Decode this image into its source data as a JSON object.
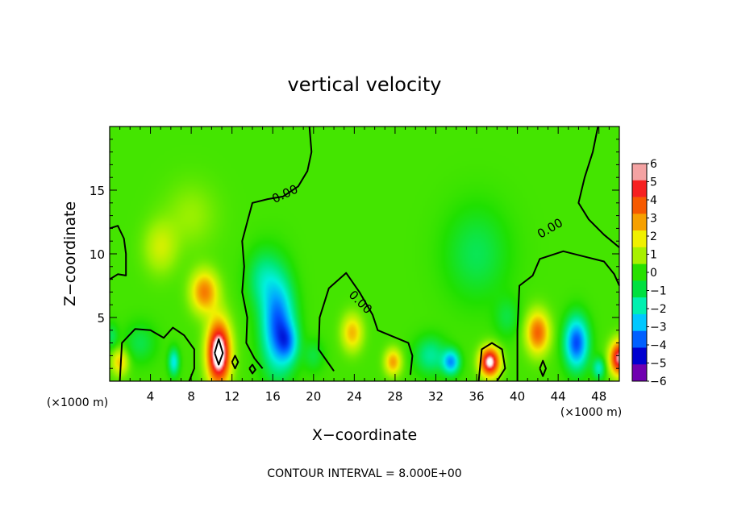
{
  "chart_data": {
    "type": "heatmap",
    "title": "vertical velocity",
    "xlabel": "X−coordinate",
    "ylabel": "Z−coordinate",
    "x_unit_label": "(×1000 m)",
    "x_unit_label_right": "(×1000 m)",
    "footer": "CONTOUR INTERVAL = 8.000E+00",
    "xlim": [
      0,
      50
    ],
    "ylim": [
      0,
      20
    ],
    "x_ticks": [
      {
        "value": 4,
        "label": "4"
      },
      {
        "value": 8,
        "label": "8"
      },
      {
        "value": 12,
        "label": "12"
      },
      {
        "value": 16,
        "label": "16"
      },
      {
        "value": 20,
        "label": "20"
      },
      {
        "value": 24,
        "label": "24"
      },
      {
        "value": 28,
        "label": "28"
      },
      {
        "value": 32,
        "label": "32"
      },
      {
        "value": 36,
        "label": "36"
      },
      {
        "value": 40,
        "label": "40"
      },
      {
        "value": 44,
        "label": "44"
      },
      {
        "value": 48,
        "label": "48"
      }
    ],
    "y_ticks": [
      {
        "value": 5,
        "label": "5"
      },
      {
        "value": 10,
        "label": "10"
      },
      {
        "value": 15,
        "label": "15"
      }
    ],
    "colorbar": {
      "range": [
        -6,
        6
      ],
      "labels": [
        "6",
        "5",
        "4",
        "3",
        "2",
        "1",
        "0",
        "−1",
        "−2",
        "−3",
        "−4",
        "−5",
        "−6"
      ],
      "colors": [
        "#f4a3a3",
        "#f62020",
        "#f65a00",
        "#f6a000",
        "#f0f000",
        "#a8f000",
        "#28e000",
        "#00e040",
        "#00f0b0",
        "#00c8ff",
        "#0060ff",
        "#0000d0",
        "#7000b0"
      ]
    },
    "background_value": 0.3,
    "features": [
      {
        "x": 10.7,
        "z": 2.2,
        "amp": 7.0,
        "sx": 1.1,
        "sz": 2.4
      },
      {
        "x": 9.3,
        "z": 7.0,
        "amp": 3.2,
        "sx": 1.3,
        "sz": 1.6
      },
      {
        "x": 5.0,
        "z": 10.5,
        "amp": 1.3,
        "sx": 1.6,
        "sz": 2.0
      },
      {
        "x": 8.0,
        "z": 13.0,
        "amp": 0.7,
        "sx": 2.5,
        "sz": 2.5
      },
      {
        "x": 16.5,
        "z": 4.5,
        "amp": -4.2,
        "sx": 1.5,
        "sz": 3.5
      },
      {
        "x": 17.5,
        "z": 3.0,
        "amp": -2.2,
        "sx": 1.0,
        "sz": 1.5
      },
      {
        "x": 15.0,
        "z": 8.0,
        "amp": -1.4,
        "sx": 1.5,
        "sz": 2.2
      },
      {
        "x": 23.8,
        "z": 3.8,
        "amp": 2.4,
        "sx": 1.0,
        "sz": 1.4
      },
      {
        "x": 27.8,
        "z": 1.5,
        "amp": 2.7,
        "sx": 0.8,
        "sz": 1.0
      },
      {
        "x": 33.5,
        "z": 1.5,
        "amp": -3.4,
        "sx": 0.8,
        "sz": 0.9
      },
      {
        "x": 31.5,
        "z": 2.0,
        "amp": -1.6,
        "sx": 1.5,
        "sz": 1.4
      },
      {
        "x": 37.3,
        "z": 1.5,
        "amp": 6.0,
        "sx": 0.95,
        "sz": 1.1
      },
      {
        "x": 42.0,
        "z": 3.8,
        "amp": 3.6,
        "sx": 1.1,
        "sz": 1.6
      },
      {
        "x": 45.8,
        "z": 3.0,
        "amp": -4.4,
        "sx": 1.1,
        "sz": 1.9
      },
      {
        "x": 50.0,
        "z": 1.8,
        "amp": 5.5,
        "sx": 0.9,
        "sz": 1.3
      },
      {
        "x": 6.3,
        "z": 1.5,
        "amp": -2.4,
        "sx": 0.5,
        "sz": 1.0
      },
      {
        "x": 1.0,
        "z": 1.5,
        "amp": 2.2,
        "sx": 0.8,
        "sz": 1.0
      },
      {
        "x": 36.0,
        "z": 10.0,
        "amp": -1.0,
        "sx": 3.0,
        "sz": 3.5
      },
      {
        "x": 3.0,
        "z": 3.0,
        "amp": -0.9,
        "sx": 1.5,
        "sz": 1.5
      },
      {
        "x": 20.0,
        "z": 2.0,
        "amp": -0.8,
        "sx": 1.0,
        "sz": 1.2
      },
      {
        "x": 39.0,
        "z": 5.0,
        "amp": -0.8,
        "sx": 1.2,
        "sz": 1.5
      },
      {
        "x": 0.2,
        "z": 3.5,
        "amp": -1.0,
        "sx": 0.6,
        "sz": 1.0
      },
      {
        "x": 48.0,
        "z": 1.0,
        "amp": -2.0,
        "sx": 0.6,
        "sz": 0.8
      }
    ],
    "contour_labels": [
      {
        "text": "0.00",
        "x": 17.2,
        "z": 14.7,
        "angle": -25
      },
      {
        "text": "0.00",
        "x": 24.6,
        "z": 6.2,
        "angle": 45
      },
      {
        "text": "0.00",
        "x": 43.2,
        "z": 12.0,
        "angle": -30
      }
    ],
    "zero_contours": [
      [
        [
          13.5,
          12.5
        ],
        [
          14,
          14
        ],
        [
          15.5,
          14.3
        ],
        [
          17,
          14.5
        ],
        [
          18.5,
          15.3
        ],
        [
          19.4,
          16.5
        ],
        [
          19.8,
          18
        ],
        [
          19.6,
          20
        ]
      ],
      [
        [
          13.5,
          12.5
        ],
        [
          13.0,
          11.0
        ],
        [
          13.2,
          9.0
        ],
        [
          13.0,
          7.0
        ],
        [
          13.5,
          5.0
        ],
        [
          13.4,
          3.0
        ],
        [
          14.2,
          1.8
        ],
        [
          15.0,
          1.0
        ]
      ],
      [
        [
          0.0,
          8.0
        ],
        [
          0.8,
          8.4
        ],
        [
          1.6,
          8.3
        ],
        [
          1.6,
          10.0
        ],
        [
          1.4,
          11.2
        ],
        [
          0.8,
          12.2
        ],
        [
          0.0,
          12.0
        ]
      ],
      [
        [
          22.0,
          0.8
        ],
        [
          20.5,
          2.5
        ],
        [
          20.6,
          5.0
        ],
        [
          21.5,
          7.3
        ],
        [
          23.2,
          8.5
        ],
        [
          24.5,
          7.0
        ],
        [
          25.8,
          5.2
        ],
        [
          26.3,
          4.0
        ],
        [
          27.8,
          3.5
        ],
        [
          29.3,
          3.0
        ],
        [
          29.7,
          2.0
        ],
        [
          29.5,
          0.5
        ]
      ],
      [
        [
          36.2,
          0.0
        ],
        [
          36.5,
          2.5
        ],
        [
          37.5,
          3.0
        ],
        [
          38.5,
          2.5
        ],
        [
          38.8,
          1.0
        ],
        [
          38.0,
          0.0
        ]
      ],
      [
        [
          40.0,
          0.0
        ],
        [
          40.0,
          4.0
        ],
        [
          40.2,
          7.5
        ],
        [
          41.5,
          8.3
        ],
        [
          42.2,
          9.6
        ],
        [
          44.5,
          10.2
        ],
        [
          46.5,
          9.8
        ],
        [
          48.5,
          9.4
        ],
        [
          49.5,
          8.4
        ],
        [
          50.0,
          7.5
        ]
      ],
      [
        [
          50.0,
          10.5
        ],
        [
          48.5,
          11.5
        ],
        [
          47.0,
          12.7
        ],
        [
          46.0,
          14.0
        ],
        [
          46.6,
          16.0
        ],
        [
          47.4,
          18.0
        ],
        [
          47.9,
          20.0
        ]
      ],
      [
        [
          1.0,
          0.0
        ],
        [
          1.2,
          3.0
        ],
        [
          2.5,
          4.1
        ],
        [
          4.0,
          4.0
        ],
        [
          5.3,
          3.4
        ],
        [
          6.2,
          4.2
        ],
        [
          7.3,
          3.6
        ],
        [
          8.3,
          2.5
        ],
        [
          8.3,
          1.0
        ],
        [
          7.8,
          0.0
        ]
      ],
      [
        [
          10.3,
          2.2
        ],
        [
          10.7,
          1.3
        ],
        [
          11.1,
          2.2
        ],
        [
          10.7,
          3.3
        ],
        [
          10.3,
          2.2
        ]
      ],
      [
        [
          12.0,
          1.5
        ],
        [
          12.3,
          2.0
        ],
        [
          12.6,
          1.5
        ],
        [
          12.3,
          1.0
        ],
        [
          12.0,
          1.5
        ]
      ],
      [
        [
          13.7,
          1.0
        ],
        [
          14.0,
          1.3
        ],
        [
          14.3,
          0.9
        ],
        [
          14.0,
          0.6
        ],
        [
          13.7,
          1.0
        ]
      ],
      [
        [
          42.2,
          1.0
        ],
        [
          42.5,
          1.6
        ],
        [
          42.8,
          1.0
        ],
        [
          42.5,
          0.4
        ],
        [
          42.2,
          1.0
        ]
      ]
    ]
  }
}
